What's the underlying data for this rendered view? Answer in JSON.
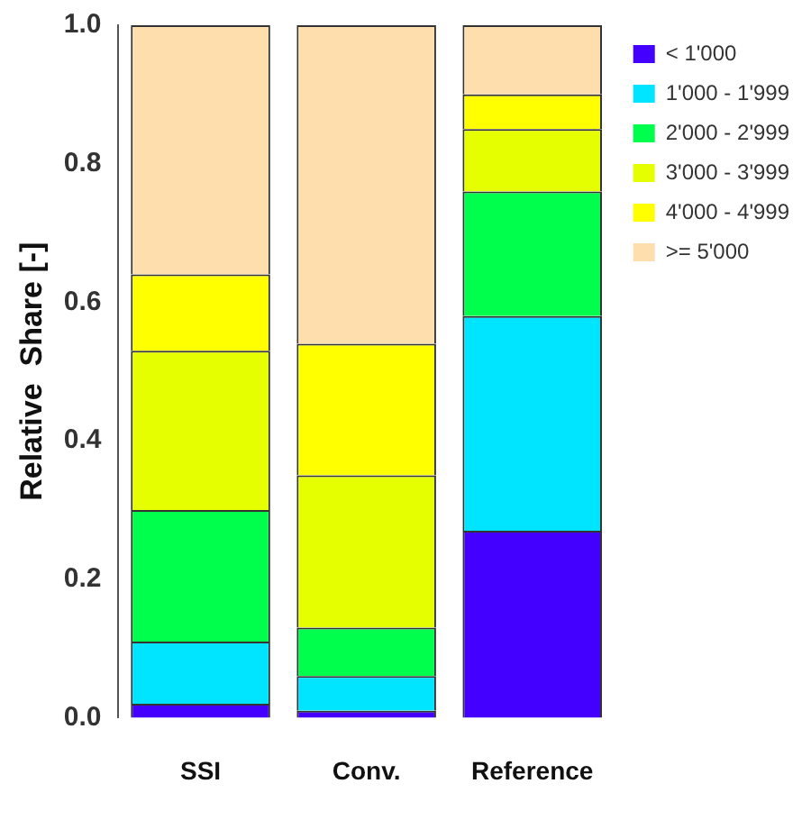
{
  "chart_data": {
    "type": "bar",
    "stacked": true,
    "ylabel": "Relative  Share [-]",
    "categories": [
      "SSI",
      "Conv.",
      "Reference"
    ],
    "series": [
      {
        "name": "< 1'000",
        "color": "#4400ff",
        "values": [
          0.02,
          0.01,
          0.27
        ]
      },
      {
        "name": "1'000 - 1'999",
        "color": "#00e5ff",
        "values": [
          0.09,
          0.05,
          0.31
        ]
      },
      {
        "name": "2'000 - 2'999",
        "color": "#00ff4d",
        "values": [
          0.19,
          0.07,
          0.18
        ]
      },
      {
        "name": "3'000 - 3'999",
        "color": "#e6ff00",
        "values": [
          0.23,
          0.22,
          0.09
        ]
      },
      {
        "name": "4'000 - 4'999",
        "color": "#ffff00",
        "values": [
          0.11,
          0.19,
          0.05
        ]
      },
      {
        "name": ">= 5'000",
        "color": "#ffdead",
        "values": [
          0.36,
          0.46,
          0.1
        ]
      }
    ],
    "ylim": [
      0,
      1
    ],
    "yticks": [
      {
        "value": 0,
        "label": "0.0"
      },
      0.2,
      0.4,
      0.6,
      0.8,
      {
        "value": 1,
        "label": "1.0"
      }
    ],
    "grid": false,
    "legend": "top right"
  }
}
